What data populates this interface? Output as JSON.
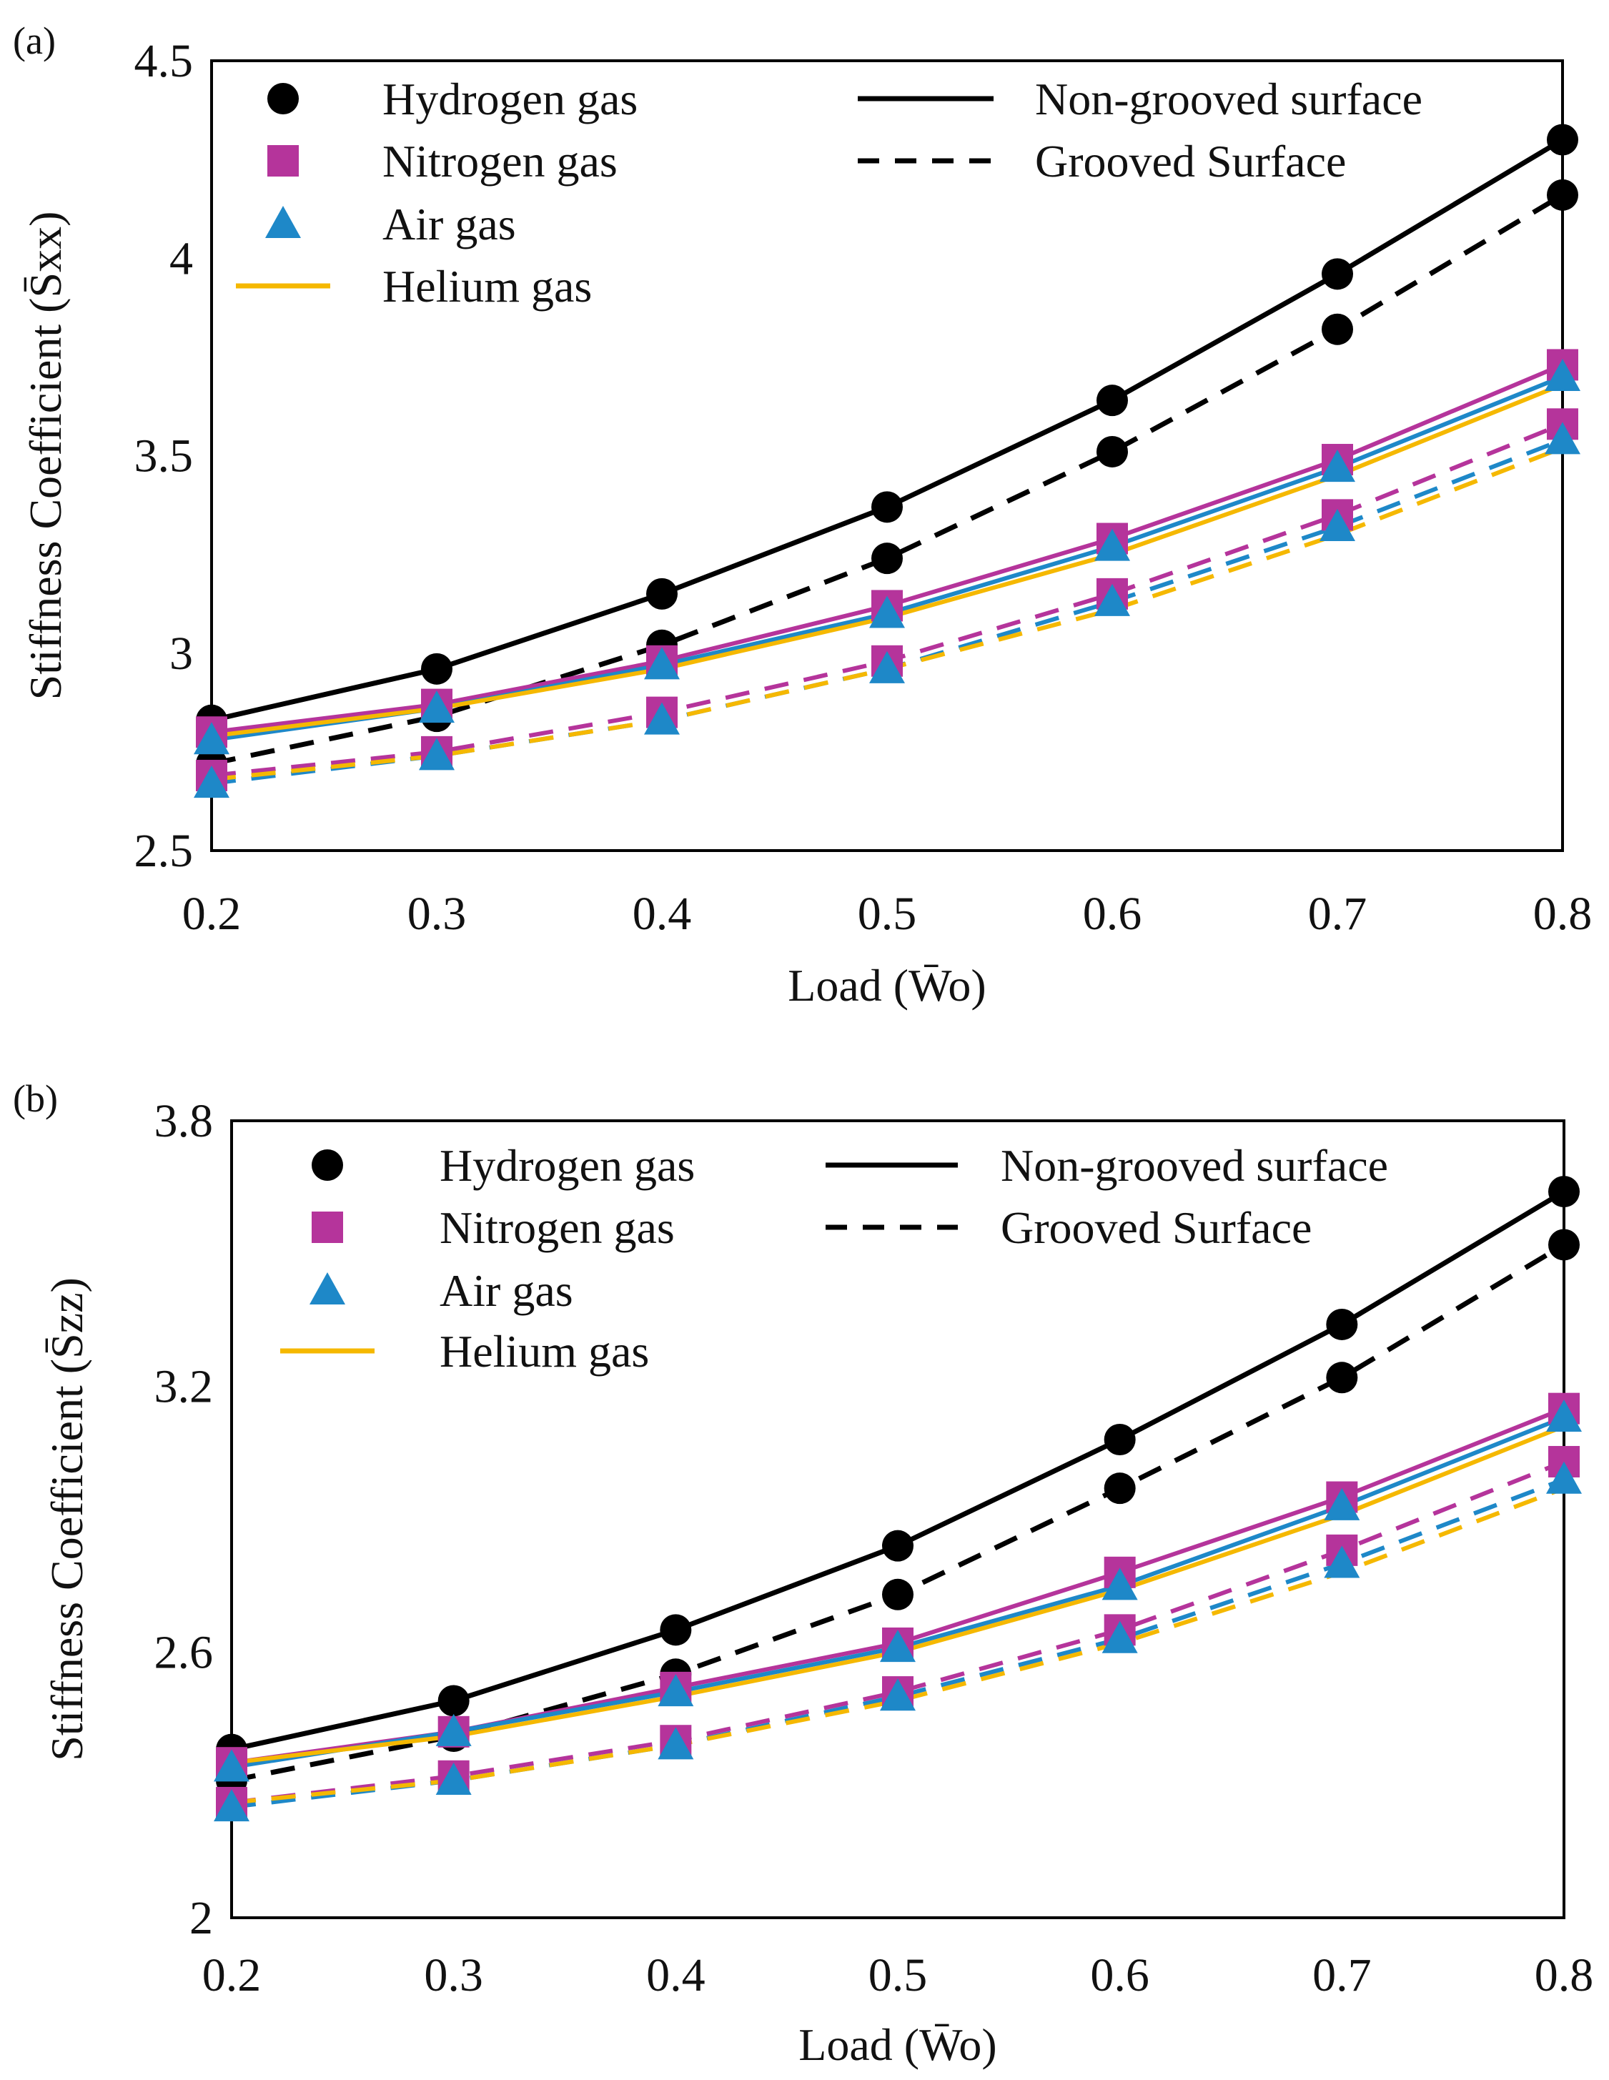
{
  "chart_data": [
    {
      "type": "line",
      "panel_label": "(a)",
      "title": "",
      "xlabel": "Load (W̄o)",
      "ylabel": "Stiffness Coefficient (S̄xx)",
      "xlim": [
        0.2,
        0.8
      ],
      "ylim": [
        2.5,
        4.5
      ],
      "x_ticks": [
        "0.2",
        "0.3",
        "0.4",
        "0.5",
        "0.6",
        "0.7",
        "0.8"
      ],
      "y_ticks": [
        "2.5",
        "3",
        "3.5",
        "4",
        "4.5"
      ],
      "grid": false,
      "x": [
        0.2,
        0.3,
        0.4,
        0.5,
        0.6,
        0.7,
        0.8
      ],
      "legend_gases": [
        {
          "name": "Hydrogen gas",
          "marker": "circle",
          "color": "#000000"
        },
        {
          "name": "Nitrogen gas",
          "marker": "square",
          "color": "#B5349B"
        },
        {
          "name": "Air gas",
          "marker": "triangle",
          "color": "#1E88C8"
        },
        {
          "name": "Helium gas",
          "marker": "line",
          "color": "#F5B800"
        }
      ],
      "legend_styles": [
        {
          "name": "Non-grooved surface",
          "style": "solid"
        },
        {
          "name": "Grooved Surface",
          "style": "dashed"
        }
      ],
      "series": [
        {
          "name": "Hydrogen gas",
          "surface": "Non-grooved surface",
          "marker": "circle",
          "color": "#000000",
          "values": [
            2.83,
            2.96,
            3.15,
            3.37,
            3.64,
            3.96,
            4.3
          ]
        },
        {
          "name": "Hydrogen gas",
          "surface": "Grooved Surface",
          "marker": "circle",
          "color": "#000000",
          "values": [
            2.72,
            2.84,
            3.02,
            3.24,
            3.51,
            3.82,
            4.16
          ]
        },
        {
          "name": "Nitrogen gas",
          "surface": "Non-grooved surface",
          "marker": "square",
          "color": "#B5349B",
          "values": [
            2.8,
            2.87,
            2.98,
            3.12,
            3.29,
            3.49,
            3.73
          ]
        },
        {
          "name": "Nitrogen gas",
          "surface": "Grooved Surface",
          "marker": "square",
          "color": "#B5349B",
          "values": [
            2.69,
            2.75,
            2.85,
            2.98,
            3.15,
            3.35,
            3.58
          ]
        },
        {
          "name": "Air gas",
          "surface": "Non-grooved surface",
          "marker": "triangle",
          "color": "#1E88C8",
          "values": [
            2.78,
            2.86,
            2.97,
            3.1,
            3.27,
            3.47,
            3.7
          ]
        },
        {
          "name": "Air gas",
          "surface": "Grooved Surface",
          "marker": "triangle",
          "color": "#1E88C8",
          "values": [
            2.67,
            2.74,
            2.83,
            2.96,
            3.13,
            3.32,
            3.54
          ]
        },
        {
          "name": "Helium gas",
          "surface": "Non-grooved surface",
          "marker": "none",
          "color": "#F5B800",
          "values": [
            2.79,
            2.86,
            2.96,
            3.09,
            3.25,
            3.45,
            3.68
          ]
        },
        {
          "name": "Helium gas",
          "surface": "Grooved Surface",
          "marker": "none",
          "color": "#F5B800",
          "values": [
            2.68,
            2.74,
            2.83,
            2.96,
            3.11,
            3.3,
            3.52
          ]
        }
      ]
    },
    {
      "type": "line",
      "panel_label": "(b)",
      "title": "",
      "xlabel": "Load (W̄o)",
      "ylabel": "Stiffness Coefficient (S̄zz)",
      "xlim": [
        0.2,
        0.8
      ],
      "ylim": [
        2.0,
        3.8
      ],
      "x_ticks": [
        "0.2",
        "0.3",
        "0.4",
        "0.5",
        "0.6",
        "0.7",
        "0.8"
      ],
      "y_ticks": [
        "2",
        "2.6",
        "3.2",
        "3.8"
      ],
      "grid": false,
      "x": [
        0.2,
        0.3,
        0.4,
        0.5,
        0.6,
        0.7,
        0.8
      ],
      "legend_gases": [
        {
          "name": "Hydrogen gas",
          "marker": "circle",
          "color": "#000000"
        },
        {
          "name": "Nitrogen gas",
          "marker": "square",
          "color": "#B5349B"
        },
        {
          "name": "Air gas",
          "marker": "triangle",
          "color": "#1E88C8"
        },
        {
          "name": "Helium gas",
          "marker": "line",
          "color": "#F5B800"
        }
      ],
      "legend_styles": [
        {
          "name": "Non-grooved surface",
          "style": "solid"
        },
        {
          "name": "Grooved Surface",
          "style": "dashed"
        }
      ],
      "series": [
        {
          "name": "Hydrogen gas",
          "surface": "Non-grooved surface",
          "marker": "circle",
          "color": "#000000",
          "values": [
            2.38,
            2.49,
            2.65,
            2.84,
            3.08,
            3.34,
            3.64
          ]
        },
        {
          "name": "Hydrogen gas",
          "surface": "Grooved Surface",
          "marker": "circle",
          "color": "#000000",
          "values": [
            2.31,
            2.41,
            2.55,
            2.73,
            2.97,
            3.22,
            3.52
          ]
        },
        {
          "name": "Nitrogen gas",
          "surface": "Non-grooved surface",
          "marker": "square",
          "color": "#B5349B",
          "values": [
            2.35,
            2.42,
            2.52,
            2.62,
            2.78,
            2.95,
            3.15
          ]
        },
        {
          "name": "Nitrogen gas",
          "surface": "Grooved Surface",
          "marker": "square",
          "color": "#B5349B",
          "values": [
            2.26,
            2.32,
            2.4,
            2.51,
            2.65,
            2.83,
            3.03
          ]
        },
        {
          "name": "Air gas",
          "surface": "Non-grooved surface",
          "marker": "triangle",
          "color": "#1E88C8",
          "values": [
            2.34,
            2.42,
            2.51,
            2.61,
            2.75,
            2.93,
            3.13
          ]
        },
        {
          "name": "Air gas",
          "surface": "Grooved Surface",
          "marker": "triangle",
          "color": "#1E88C8",
          "values": [
            2.25,
            2.31,
            2.39,
            2.5,
            2.63,
            2.8,
            2.99
          ]
        },
        {
          "name": "Helium gas",
          "surface": "Non-grooved surface",
          "marker": "none",
          "color": "#F5B800",
          "values": [
            2.35,
            2.41,
            2.5,
            2.6,
            2.74,
            2.91,
            3.11
          ]
        },
        {
          "name": "Helium gas",
          "surface": "Grooved Surface",
          "marker": "none",
          "color": "#F5B800",
          "values": [
            2.26,
            2.31,
            2.39,
            2.49,
            2.62,
            2.78,
            2.97
          ]
        }
      ]
    }
  ]
}
